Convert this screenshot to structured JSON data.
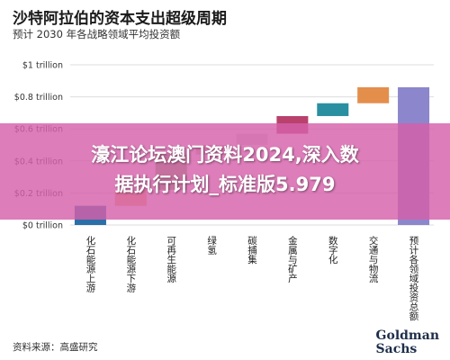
{
  "header": {
    "title": "沙特阿拉伯的资本支出超级周期",
    "subtitle": "预计 2030 年各战略领域平均投资额"
  },
  "chart_data": {
    "type": "bar",
    "subtype": "waterfall",
    "categories": [
      "化石能源上游",
      "化石能源下游",
      "可再生能源",
      "绿氢",
      "碳捕集",
      "金属与矿产",
      "数字化",
      "交通与物流",
      "预计各领域投资总额"
    ],
    "values": [
      0.12,
      0.1,
      0.22,
      0.06,
      0.07,
      0.11,
      0.08,
      0.1,
      0.86
    ],
    "is_total": [
      false,
      false,
      false,
      false,
      false,
      false,
      false,
      false,
      true
    ],
    "colors": [
      "#2a6fa8",
      "#f0b26e",
      "#7ab86a",
      "#c9c2b0",
      "#d7d7d7",
      "#b8426c",
      "#2a8fa0",
      "#e48e4c",
      "#8c86cc"
    ],
    "y_ticks": [
      "$0 trillion",
      "$0.2 trillion",
      "$0.4 trillion",
      "$0.6 trillion",
      "$0.8 trillion",
      "$1 trillion"
    ],
    "ylim": [
      0,
      1.0
    ],
    "grid": true
  },
  "overlay": {
    "line1": "濠江论坛澳门资料2024,深入数",
    "line2": "据执行计划_标准版5.979"
  },
  "footer": {
    "source": "资料来源：高盛研究",
    "logo_line1": "Goldman",
    "logo_line2": "Sachs"
  }
}
